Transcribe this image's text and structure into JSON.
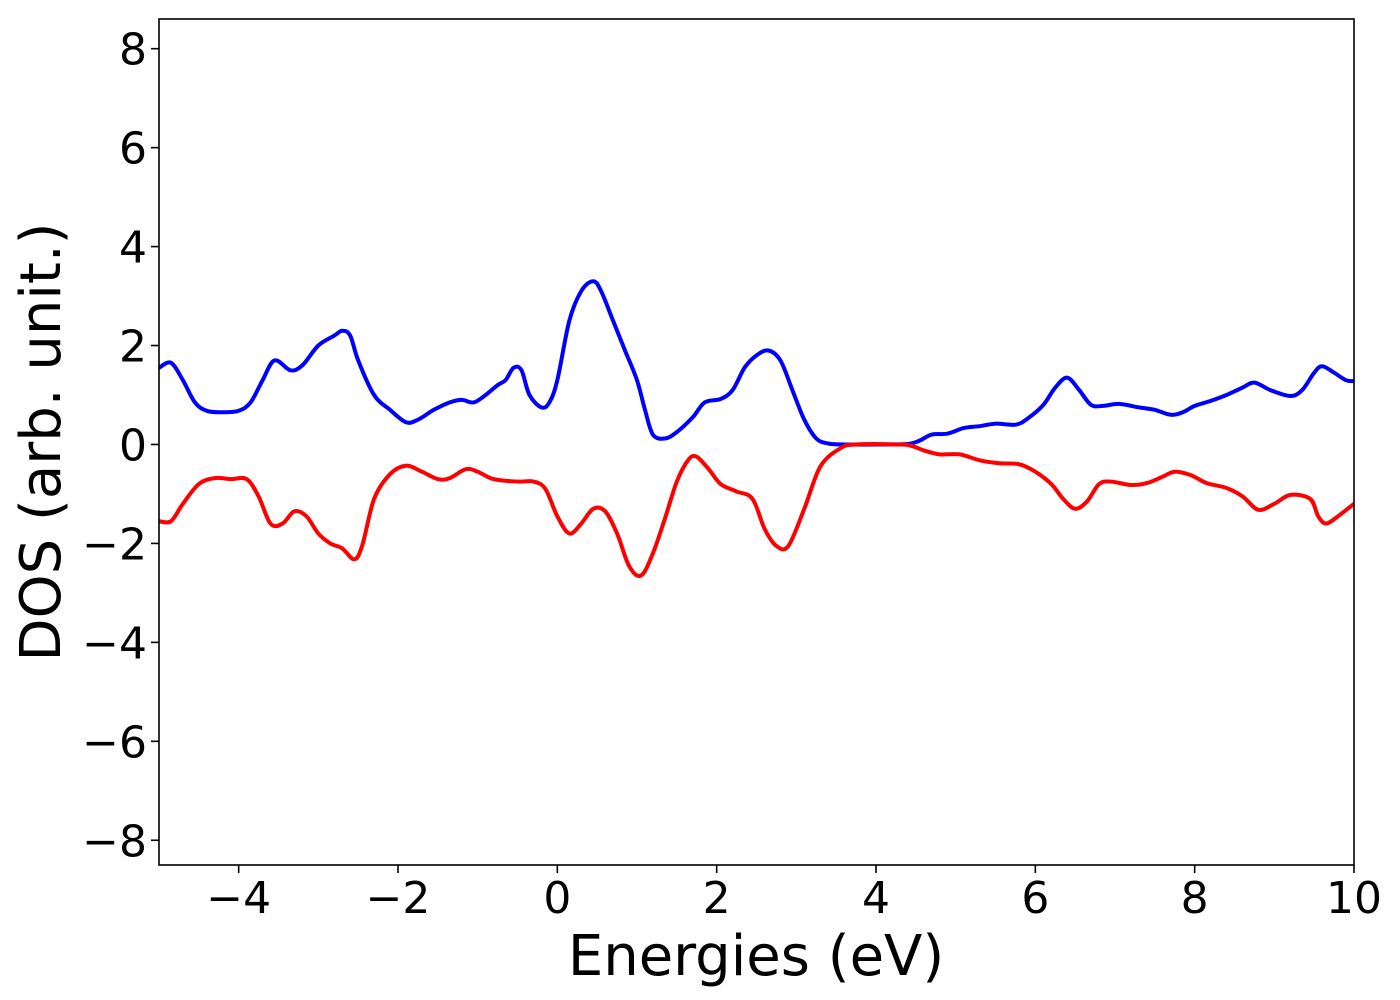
{
  "chart_data": {
    "type": "line",
    "title": "",
    "xlabel": "Energies (eV)",
    "ylabel": "DOS (arb. unit.)",
    "xlim": [
      -5,
      10
    ],
    "ylim": [
      -8.5,
      8.6
    ],
    "xticks": [
      -4,
      -2,
      0,
      2,
      4,
      6,
      8,
      10
    ],
    "xtick_labels": [
      "−4",
      "−2",
      "0",
      "2",
      "4",
      "6",
      "8",
      "10"
    ],
    "yticks": [
      8,
      6,
      4,
      2,
      0,
      -2,
      -4,
      -6,
      -8
    ],
    "ytick_labels": [
      "8",
      "6",
      "4",
      "2",
      "0",
      "−2",
      "−4",
      "−6",
      "−8"
    ],
    "grid": false,
    "legend": false,
    "series": [
      {
        "color": "#0000ff",
        "points": [
          [
            -5.0,
            1.55
          ],
          [
            -4.85,
            1.65
          ],
          [
            -4.7,
            1.3
          ],
          [
            -4.55,
            0.85
          ],
          [
            -4.4,
            0.68
          ],
          [
            -4.2,
            0.65
          ],
          [
            -4.0,
            0.68
          ],
          [
            -3.85,
            0.85
          ],
          [
            -3.7,
            1.3
          ],
          [
            -3.55,
            1.7
          ],
          [
            -3.35,
            1.5
          ],
          [
            -3.2,
            1.6
          ],
          [
            -3.0,
            2.0
          ],
          [
            -2.8,
            2.2
          ],
          [
            -2.7,
            2.3
          ],
          [
            -2.6,
            2.2
          ],
          [
            -2.5,
            1.7
          ],
          [
            -2.3,
            1.0
          ],
          [
            -2.1,
            0.7
          ],
          [
            -1.9,
            0.45
          ],
          [
            -1.75,
            0.5
          ],
          [
            -1.55,
            0.7
          ],
          [
            -1.35,
            0.85
          ],
          [
            -1.2,
            0.9
          ],
          [
            -1.05,
            0.85
          ],
          [
            -0.9,
            1.0
          ],
          [
            -0.75,
            1.2
          ],
          [
            -0.65,
            1.3
          ],
          [
            -0.55,
            1.55
          ],
          [
            -0.45,
            1.5
          ],
          [
            -0.35,
            1.0
          ],
          [
            -0.2,
            0.75
          ],
          [
            -0.1,
            0.85
          ],
          [
            0.0,
            1.3
          ],
          [
            0.15,
            2.5
          ],
          [
            0.3,
            3.1
          ],
          [
            0.45,
            3.3
          ],
          [
            0.55,
            3.1
          ],
          [
            0.7,
            2.5
          ],
          [
            0.85,
            1.9
          ],
          [
            1.0,
            1.3
          ],
          [
            1.1,
            0.7
          ],
          [
            1.2,
            0.2
          ],
          [
            1.35,
            0.12
          ],
          [
            1.5,
            0.25
          ],
          [
            1.7,
            0.55
          ],
          [
            1.85,
            0.85
          ],
          [
            2.05,
            0.92
          ],
          [
            2.2,
            1.1
          ],
          [
            2.35,
            1.55
          ],
          [
            2.5,
            1.8
          ],
          [
            2.65,
            1.9
          ],
          [
            2.8,
            1.7
          ],
          [
            2.95,
            1.1
          ],
          [
            3.1,
            0.5
          ],
          [
            3.25,
            0.12
          ],
          [
            3.4,
            0.02
          ],
          [
            3.6,
            0.0
          ],
          [
            4.0,
            0.0
          ],
          [
            4.4,
            0.01
          ],
          [
            4.55,
            0.08
          ],
          [
            4.7,
            0.2
          ],
          [
            4.9,
            0.22
          ],
          [
            5.1,
            0.33
          ],
          [
            5.3,
            0.37
          ],
          [
            5.5,
            0.42
          ],
          [
            5.75,
            0.4
          ],
          [
            5.9,
            0.52
          ],
          [
            6.1,
            0.8
          ],
          [
            6.25,
            1.15
          ],
          [
            6.4,
            1.35
          ],
          [
            6.55,
            1.1
          ],
          [
            6.7,
            0.8
          ],
          [
            6.85,
            0.78
          ],
          [
            7.05,
            0.82
          ],
          [
            7.3,
            0.75
          ],
          [
            7.5,
            0.7
          ],
          [
            7.7,
            0.6
          ],
          [
            7.85,
            0.65
          ],
          [
            8.0,
            0.78
          ],
          [
            8.2,
            0.88
          ],
          [
            8.4,
            1.0
          ],
          [
            8.6,
            1.15
          ],
          [
            8.75,
            1.25
          ],
          [
            8.95,
            1.1
          ],
          [
            9.2,
            0.98
          ],
          [
            9.35,
            1.1
          ],
          [
            9.5,
            1.45
          ],
          [
            9.6,
            1.58
          ],
          [
            9.75,
            1.45
          ],
          [
            9.9,
            1.3
          ],
          [
            10.0,
            1.28
          ]
        ]
      },
      {
        "color": "#ff0000",
        "points": [
          [
            -5.0,
            -1.55
          ],
          [
            -4.85,
            -1.55
          ],
          [
            -4.7,
            -1.2
          ],
          [
            -4.5,
            -0.8
          ],
          [
            -4.3,
            -0.68
          ],
          [
            -4.1,
            -0.7
          ],
          [
            -3.9,
            -0.7
          ],
          [
            -3.75,
            -1.05
          ],
          [
            -3.6,
            -1.6
          ],
          [
            -3.45,
            -1.6
          ],
          [
            -3.3,
            -1.35
          ],
          [
            -3.15,
            -1.45
          ],
          [
            -3.0,
            -1.8
          ],
          [
            -2.85,
            -2.0
          ],
          [
            -2.7,
            -2.1
          ],
          [
            -2.55,
            -2.32
          ],
          [
            -2.45,
            -2.05
          ],
          [
            -2.3,
            -1.1
          ],
          [
            -2.1,
            -0.6
          ],
          [
            -1.9,
            -0.43
          ],
          [
            -1.7,
            -0.55
          ],
          [
            -1.5,
            -0.7
          ],
          [
            -1.35,
            -0.68
          ],
          [
            -1.15,
            -0.5
          ],
          [
            -1.0,
            -0.55
          ],
          [
            -0.8,
            -0.7
          ],
          [
            -0.5,
            -0.75
          ],
          [
            -0.3,
            -0.75
          ],
          [
            -0.15,
            -0.9
          ],
          [
            0.0,
            -1.45
          ],
          [
            0.15,
            -1.8
          ],
          [
            0.3,
            -1.6
          ],
          [
            0.45,
            -1.3
          ],
          [
            0.6,
            -1.35
          ],
          [
            0.75,
            -1.8
          ],
          [
            0.9,
            -2.45
          ],
          [
            1.05,
            -2.65
          ],
          [
            1.2,
            -2.2
          ],
          [
            1.35,
            -1.5
          ],
          [
            1.5,
            -0.75
          ],
          [
            1.65,
            -0.3
          ],
          [
            1.75,
            -0.25
          ],
          [
            1.9,
            -0.5
          ],
          [
            2.05,
            -0.8
          ],
          [
            2.25,
            -0.95
          ],
          [
            2.45,
            -1.1
          ],
          [
            2.6,
            -1.7
          ],
          [
            2.75,
            -2.05
          ],
          [
            2.9,
            -2.05
          ],
          [
            3.1,
            -1.3
          ],
          [
            3.3,
            -0.45
          ],
          [
            3.55,
            -0.08
          ],
          [
            3.75,
            0.0
          ],
          [
            4.3,
            0.0
          ],
          [
            4.45,
            -0.03
          ],
          [
            4.6,
            -0.12
          ],
          [
            4.8,
            -0.2
          ],
          [
            5.05,
            -0.2
          ],
          [
            5.3,
            -0.32
          ],
          [
            5.55,
            -0.38
          ],
          [
            5.8,
            -0.4
          ],
          [
            6.0,
            -0.55
          ],
          [
            6.2,
            -0.8
          ],
          [
            6.35,
            -1.1
          ],
          [
            6.5,
            -1.3
          ],
          [
            6.65,
            -1.15
          ],
          [
            6.8,
            -0.8
          ],
          [
            6.95,
            -0.75
          ],
          [
            7.2,
            -0.82
          ],
          [
            7.4,
            -0.78
          ],
          [
            7.6,
            -0.65
          ],
          [
            7.75,
            -0.55
          ],
          [
            7.95,
            -0.62
          ],
          [
            8.15,
            -0.78
          ],
          [
            8.4,
            -0.88
          ],
          [
            8.6,
            -1.05
          ],
          [
            8.8,
            -1.32
          ],
          [
            9.0,
            -1.2
          ],
          [
            9.2,
            -1.02
          ],
          [
            9.45,
            -1.1
          ],
          [
            9.55,
            -1.45
          ],
          [
            9.65,
            -1.6
          ],
          [
            9.8,
            -1.45
          ],
          [
            10.0,
            -1.2
          ]
        ]
      }
    ]
  }
}
